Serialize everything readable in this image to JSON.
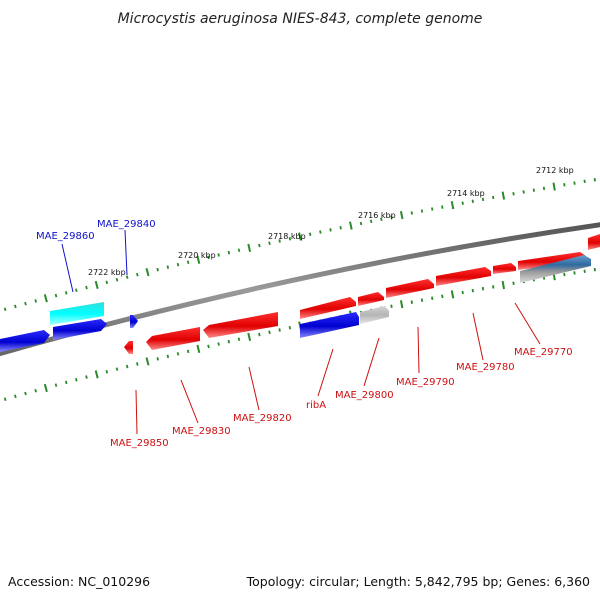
{
  "title": "Microcystis aeruginosa NIES-843, complete genome",
  "footer": {
    "accession": "Accession: NC_010296",
    "summary": "Topology: circular; Length: 5,842,795 bp; Genes: 6,360"
  },
  "colors": {
    "forward_gene": "#ee1111",
    "reverse_gene": "#1111dd",
    "rna_gene": "#22dddd",
    "other_gene": "#bbbbbb",
    "gradient_gene": "#4477aa",
    "backbone": "#777777",
    "tick": "#2a8a2a",
    "forward_label": "#cc1111",
    "reverse_label": "#1111cc"
  },
  "scale": {
    "unit": "kbp",
    "ticks": [
      "2712 kbp",
      "2714 kbp",
      "2716 kbp",
      "2718 kbp",
      "2720 kbp",
      "2722 kbp"
    ]
  },
  "genes": {
    "top_labels": [
      "MAE_29860",
      "MAE_29840"
    ],
    "bottom_labels": [
      "MAE_29850",
      "MAE_29830",
      "MAE_29820",
      "ribA",
      "MAE_29800",
      "MAE_29790",
      "MAE_29780",
      "MAE_29770"
    ]
  }
}
